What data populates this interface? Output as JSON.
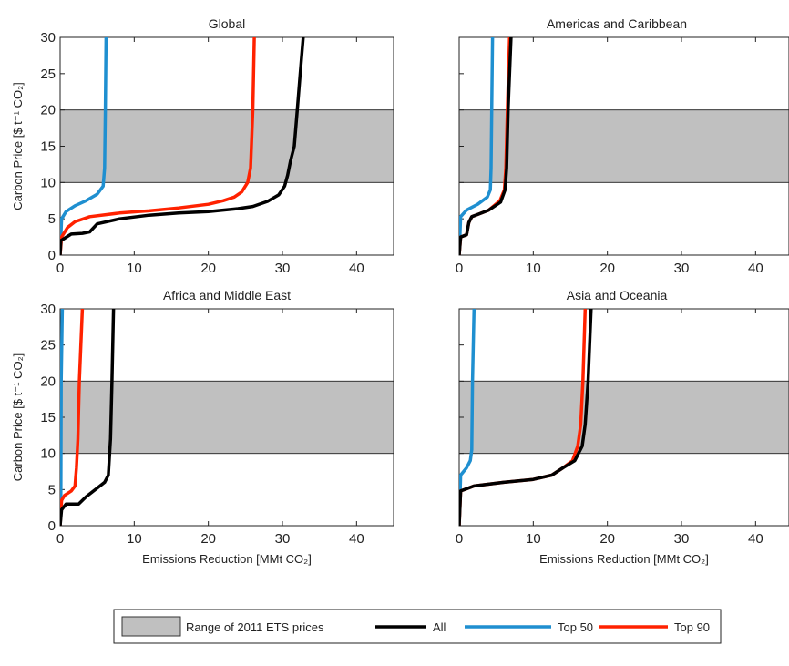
{
  "chart_data": [
    {
      "type": "line",
      "title": "Global",
      "xlabel": "",
      "ylabel": "Carbon Price [$ t⁻¹ CO₂]",
      "xlim": [
        0,
        45
      ],
      "ylim": [
        0,
        30
      ],
      "xticks": [
        "0",
        "10",
        "20",
        "30",
        "40"
      ],
      "yticks": [
        "0",
        "5",
        "10",
        "15",
        "20",
        "25",
        "30"
      ],
      "band": [
        10,
        20
      ],
      "series": [
        {
          "key": "top50",
          "x": [
            0,
            0.2,
            0.8,
            2,
            3.5,
            5,
            5.8,
            6,
            6.1,
            6.2
          ],
          "y": [
            0,
            5,
            6,
            6.8,
            7.5,
            8.4,
            9.5,
            12,
            20,
            30
          ]
        },
        {
          "key": "top90",
          "x": [
            0,
            0.2,
            1,
            2,
            4,
            8,
            12,
            16,
            20,
            22,
            23.5,
            24.5,
            25.3,
            25.7,
            26,
            26.2
          ],
          "y": [
            0,
            2.5,
            3.8,
            4.6,
            5.3,
            5.8,
            6.1,
            6.5,
            7,
            7.5,
            8,
            8.7,
            10,
            12,
            20,
            30
          ]
        },
        {
          "key": "all",
          "x": [
            0,
            0.1,
            1.5,
            3,
            4,
            5,
            8,
            12,
            16,
            20,
            24,
            26,
            28,
            29.5,
            30.3,
            30.7,
            31.1,
            31.6,
            32,
            32.4,
            32.8
          ],
          "y": [
            0,
            2,
            2.9,
            3,
            3.2,
            4.3,
            5,
            5.5,
            5.8,
            6,
            6.4,
            6.7,
            7.4,
            8.3,
            9.5,
            11,
            13,
            15,
            20,
            25,
            30
          ]
        }
      ]
    },
    {
      "type": "line",
      "title": "Americas and Caribbean",
      "xlabel": "",
      "ylabel": "",
      "xlim": [
        0,
        45
      ],
      "ylim": [
        0,
        30
      ],
      "xticks": [
        "0",
        "10",
        "20",
        "30",
        "40"
      ],
      "yticks": [],
      "band": [
        10,
        20
      ],
      "series": [
        {
          "key": "top50",
          "x": [
            0,
            0.2,
            1,
            2.5,
            3.8,
            4.2,
            4.3,
            4.5
          ],
          "y": [
            0,
            5.3,
            6.2,
            7,
            8,
            9,
            12,
            30
          ]
        },
        {
          "key": "top90",
          "x": [
            0,
            0.2,
            1,
            1.3,
            1.7,
            2.5,
            4,
            5.5,
            6.1,
            6.3,
            6.5,
            6.8
          ],
          "y": [
            0,
            2.5,
            2.8,
            4.5,
            5.3,
            5.6,
            6.2,
            7.5,
            9,
            12,
            20,
            30
          ]
        },
        {
          "key": "all",
          "x": [
            0,
            0.2,
            1,
            1.3,
            1.7,
            2.5,
            4,
            5.6,
            6.2,
            6.4,
            6.6,
            7
          ],
          "y": [
            0,
            2.5,
            2.8,
            4.5,
            5.3,
            5.6,
            6.2,
            7.3,
            9,
            12,
            20,
            30
          ]
        }
      ]
    },
    {
      "type": "line",
      "title": "Africa and Middle East",
      "xlabel": "Emissions Reduction [MMt CO₂]",
      "ylabel": "Carbon Price [$ t⁻¹ CO₂]",
      "xlim": [
        0,
        45
      ],
      "ylim": [
        0,
        30
      ],
      "xticks": [
        "0",
        "10",
        "20",
        "30",
        "40"
      ],
      "yticks": [
        "0",
        "5",
        "10",
        "15",
        "20",
        "25",
        "30"
      ],
      "band": [
        10,
        20
      ],
      "series": [
        {
          "key": "top50",
          "x": [
            0,
            0.1,
            0.15,
            0.3
          ],
          "y": [
            0,
            3.5,
            20,
            30
          ]
        },
        {
          "key": "top90",
          "x": [
            0,
            0.2,
            0.6,
            1.5,
            2,
            2.2,
            2.4,
            2.6,
            3
          ],
          "y": [
            0,
            3.5,
            4.2,
            4.8,
            5.5,
            8,
            12,
            20,
            30
          ]
        },
        {
          "key": "all",
          "x": [
            0,
            0.2,
            0.8,
            2.5,
            3.5,
            5,
            6,
            6.5,
            6.8,
            7,
            7.2
          ],
          "y": [
            0,
            2.2,
            3,
            3,
            4,
            5.2,
            6,
            7,
            12,
            20,
            30
          ]
        }
      ]
    },
    {
      "type": "line",
      "title": "Asia and Oceania",
      "xlabel": "Emissions Reduction [MMt CO₂]",
      "ylabel": "",
      "xlim": [
        0,
        45
      ],
      "ylim": [
        0,
        30
      ],
      "xticks": [
        "0",
        "10",
        "20",
        "30",
        "40"
      ],
      "yticks": [],
      "band": [
        10,
        20
      ],
      "series": [
        {
          "key": "top50",
          "x": [
            0,
            0.2,
            1,
            1.5,
            1.7,
            1.8,
            2
          ],
          "y": [
            0,
            7,
            8,
            9,
            10.5,
            20,
            30
          ]
        },
        {
          "key": "top90",
          "x": [
            0,
            0.2,
            2,
            6,
            10,
            12.5,
            14,
            15.3,
            16,
            16.4,
            16.7,
            17
          ],
          "y": [
            0,
            4.8,
            5.5,
            6,
            6.4,
            7,
            8,
            9,
            11,
            14,
            20,
            30
          ]
        },
        {
          "key": "all",
          "x": [
            0,
            0.2,
            2,
            6,
            10,
            12.5,
            14,
            15.6,
            16.6,
            17,
            17.4,
            17.8
          ],
          "y": [
            0,
            4.8,
            5.5,
            6,
            6.4,
            7,
            8,
            9,
            11,
            14,
            20,
            30
          ]
        }
      ]
    }
  ],
  "legend": {
    "placement": "bottom-center",
    "items": [
      {
        "key": "band",
        "label": "Range of 2011 ETS prices",
        "color": "#c0c0c0"
      },
      {
        "key": "all",
        "label": "All",
        "color": "#000000"
      },
      {
        "key": "top50",
        "label": "Top 50",
        "color": "#1f8fd0"
      },
      {
        "key": "top90",
        "label": "Top 90",
        "color": "#ff2200"
      }
    ]
  },
  "colors": {
    "band": "#c0c0c0",
    "all": "#000000",
    "top50": "#1f8fd0",
    "top90": "#ff2200"
  }
}
